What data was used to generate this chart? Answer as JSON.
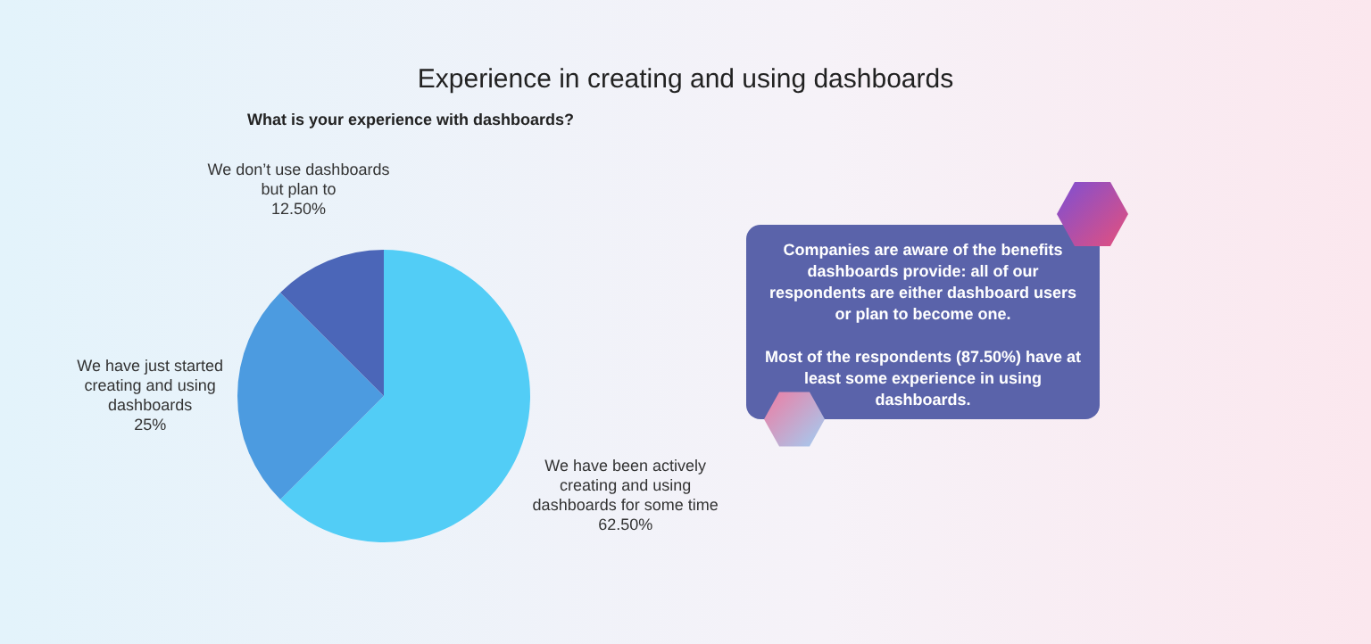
{
  "chart_data": {
    "type": "pie",
    "title": "Experience in creating and using dashboards",
    "subtitle": "What is your experience with dashboards?",
    "categories": [
      "We have been actively creating and using dashboards for some time",
      "We have just started creating and using dashboards",
      "We don’t use dashboards but plan to"
    ],
    "values": [
      62.5,
      25,
      12.5
    ],
    "value_labels": [
      "62.50%",
      "25%",
      "12.50%"
    ],
    "colors": [
      "#52cdf6",
      "#4c9be0",
      "#4b66b8"
    ],
    "legend": false,
    "annotations": [
      "Companies are aware of the benefits dashboards provide: all of our respondents are either dashboard users or plan to become one.",
      "Most of the respondents (87.50%) have at least some experience in using dashboards."
    ]
  }
}
